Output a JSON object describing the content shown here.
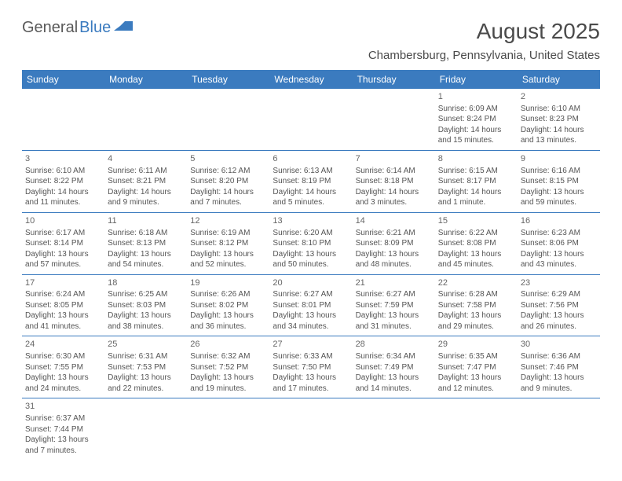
{
  "logo": {
    "part1": "General",
    "part2": "Blue"
  },
  "title": "August 2025",
  "location": "Chambersburg, Pennsylvania, United States",
  "colors": {
    "header_bg": "#3b7bbf",
    "header_text": "#ffffff",
    "border": "#3b7bbf",
    "text": "#555555"
  },
  "weekdays": [
    "Sunday",
    "Monday",
    "Tuesday",
    "Wednesday",
    "Thursday",
    "Friday",
    "Saturday"
  ],
  "weeks": [
    [
      null,
      null,
      null,
      null,
      null,
      {
        "n": "1",
        "sr": "Sunrise: 6:09 AM",
        "ss": "Sunset: 8:24 PM",
        "d1": "Daylight: 14 hours",
        "d2": "and 15 minutes."
      },
      {
        "n": "2",
        "sr": "Sunrise: 6:10 AM",
        "ss": "Sunset: 8:23 PM",
        "d1": "Daylight: 14 hours",
        "d2": "and 13 minutes."
      }
    ],
    [
      {
        "n": "3",
        "sr": "Sunrise: 6:10 AM",
        "ss": "Sunset: 8:22 PM",
        "d1": "Daylight: 14 hours",
        "d2": "and 11 minutes."
      },
      {
        "n": "4",
        "sr": "Sunrise: 6:11 AM",
        "ss": "Sunset: 8:21 PM",
        "d1": "Daylight: 14 hours",
        "d2": "and 9 minutes."
      },
      {
        "n": "5",
        "sr": "Sunrise: 6:12 AM",
        "ss": "Sunset: 8:20 PM",
        "d1": "Daylight: 14 hours",
        "d2": "and 7 minutes."
      },
      {
        "n": "6",
        "sr": "Sunrise: 6:13 AM",
        "ss": "Sunset: 8:19 PM",
        "d1": "Daylight: 14 hours",
        "d2": "and 5 minutes."
      },
      {
        "n": "7",
        "sr": "Sunrise: 6:14 AM",
        "ss": "Sunset: 8:18 PM",
        "d1": "Daylight: 14 hours",
        "d2": "and 3 minutes."
      },
      {
        "n": "8",
        "sr": "Sunrise: 6:15 AM",
        "ss": "Sunset: 8:17 PM",
        "d1": "Daylight: 14 hours",
        "d2": "and 1 minute."
      },
      {
        "n": "9",
        "sr": "Sunrise: 6:16 AM",
        "ss": "Sunset: 8:15 PM",
        "d1": "Daylight: 13 hours",
        "d2": "and 59 minutes."
      }
    ],
    [
      {
        "n": "10",
        "sr": "Sunrise: 6:17 AM",
        "ss": "Sunset: 8:14 PM",
        "d1": "Daylight: 13 hours",
        "d2": "and 57 minutes."
      },
      {
        "n": "11",
        "sr": "Sunrise: 6:18 AM",
        "ss": "Sunset: 8:13 PM",
        "d1": "Daylight: 13 hours",
        "d2": "and 54 minutes."
      },
      {
        "n": "12",
        "sr": "Sunrise: 6:19 AM",
        "ss": "Sunset: 8:12 PM",
        "d1": "Daylight: 13 hours",
        "d2": "and 52 minutes."
      },
      {
        "n": "13",
        "sr": "Sunrise: 6:20 AM",
        "ss": "Sunset: 8:10 PM",
        "d1": "Daylight: 13 hours",
        "d2": "and 50 minutes."
      },
      {
        "n": "14",
        "sr": "Sunrise: 6:21 AM",
        "ss": "Sunset: 8:09 PM",
        "d1": "Daylight: 13 hours",
        "d2": "and 48 minutes."
      },
      {
        "n": "15",
        "sr": "Sunrise: 6:22 AM",
        "ss": "Sunset: 8:08 PM",
        "d1": "Daylight: 13 hours",
        "d2": "and 45 minutes."
      },
      {
        "n": "16",
        "sr": "Sunrise: 6:23 AM",
        "ss": "Sunset: 8:06 PM",
        "d1": "Daylight: 13 hours",
        "d2": "and 43 minutes."
      }
    ],
    [
      {
        "n": "17",
        "sr": "Sunrise: 6:24 AM",
        "ss": "Sunset: 8:05 PM",
        "d1": "Daylight: 13 hours",
        "d2": "and 41 minutes."
      },
      {
        "n": "18",
        "sr": "Sunrise: 6:25 AM",
        "ss": "Sunset: 8:03 PM",
        "d1": "Daylight: 13 hours",
        "d2": "and 38 minutes."
      },
      {
        "n": "19",
        "sr": "Sunrise: 6:26 AM",
        "ss": "Sunset: 8:02 PM",
        "d1": "Daylight: 13 hours",
        "d2": "and 36 minutes."
      },
      {
        "n": "20",
        "sr": "Sunrise: 6:27 AM",
        "ss": "Sunset: 8:01 PM",
        "d1": "Daylight: 13 hours",
        "d2": "and 34 minutes."
      },
      {
        "n": "21",
        "sr": "Sunrise: 6:27 AM",
        "ss": "Sunset: 7:59 PM",
        "d1": "Daylight: 13 hours",
        "d2": "and 31 minutes."
      },
      {
        "n": "22",
        "sr": "Sunrise: 6:28 AM",
        "ss": "Sunset: 7:58 PM",
        "d1": "Daylight: 13 hours",
        "d2": "and 29 minutes."
      },
      {
        "n": "23",
        "sr": "Sunrise: 6:29 AM",
        "ss": "Sunset: 7:56 PM",
        "d1": "Daylight: 13 hours",
        "d2": "and 26 minutes."
      }
    ],
    [
      {
        "n": "24",
        "sr": "Sunrise: 6:30 AM",
        "ss": "Sunset: 7:55 PM",
        "d1": "Daylight: 13 hours",
        "d2": "and 24 minutes."
      },
      {
        "n": "25",
        "sr": "Sunrise: 6:31 AM",
        "ss": "Sunset: 7:53 PM",
        "d1": "Daylight: 13 hours",
        "d2": "and 22 minutes."
      },
      {
        "n": "26",
        "sr": "Sunrise: 6:32 AM",
        "ss": "Sunset: 7:52 PM",
        "d1": "Daylight: 13 hours",
        "d2": "and 19 minutes."
      },
      {
        "n": "27",
        "sr": "Sunrise: 6:33 AM",
        "ss": "Sunset: 7:50 PM",
        "d1": "Daylight: 13 hours",
        "d2": "and 17 minutes."
      },
      {
        "n": "28",
        "sr": "Sunrise: 6:34 AM",
        "ss": "Sunset: 7:49 PM",
        "d1": "Daylight: 13 hours",
        "d2": "and 14 minutes."
      },
      {
        "n": "29",
        "sr": "Sunrise: 6:35 AM",
        "ss": "Sunset: 7:47 PM",
        "d1": "Daylight: 13 hours",
        "d2": "and 12 minutes."
      },
      {
        "n": "30",
        "sr": "Sunrise: 6:36 AM",
        "ss": "Sunset: 7:46 PM",
        "d1": "Daylight: 13 hours",
        "d2": "and 9 minutes."
      }
    ],
    [
      {
        "n": "31",
        "sr": "Sunrise: 6:37 AM",
        "ss": "Sunset: 7:44 PM",
        "d1": "Daylight: 13 hours",
        "d2": "and 7 minutes."
      },
      null,
      null,
      null,
      null,
      null,
      null
    ]
  ]
}
